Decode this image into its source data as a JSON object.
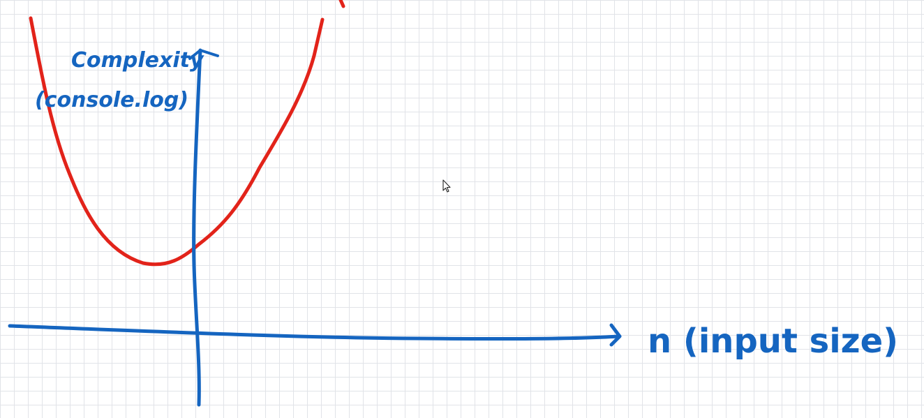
{
  "diagram": {
    "y_axis_label_line1": "Complexity",
    "y_axis_label_line2": "(console.log)",
    "x_axis_label": "n (input size)"
  },
  "colors": {
    "axes_and_text": "#1565c0",
    "curve": "#e2231a",
    "grid": "#e1e3e8",
    "background": "#ffffff"
  },
  "icons": {
    "cursor": "mouse-pointer-icon"
  }
}
